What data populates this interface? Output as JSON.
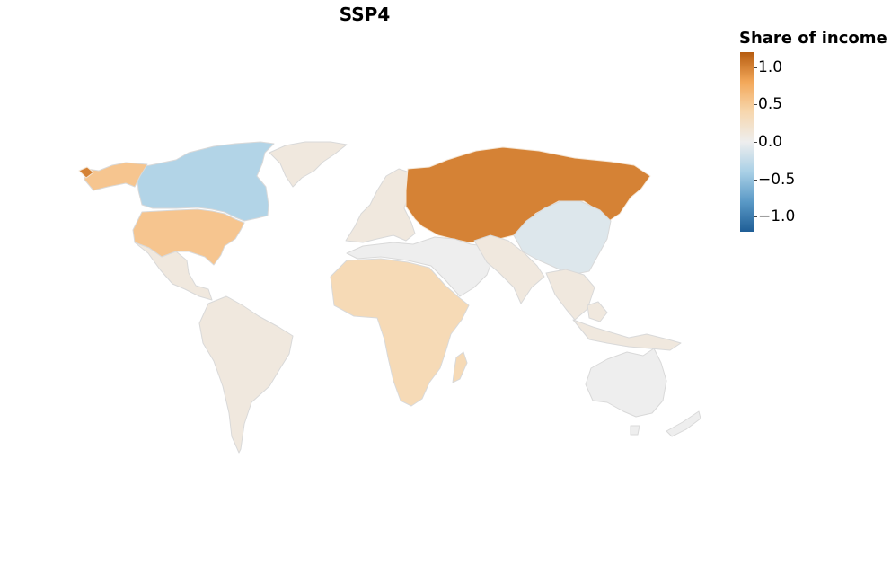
{
  "title": "SSP4",
  "legend": {
    "title": "Share of income",
    "ticks": [
      {
        "label": "1.0",
        "value": 1.0
      },
      {
        "label": "0.5",
        "value": 0.5
      },
      {
        "label": "0.0",
        "value": 0.0
      },
      {
        "label": "−0.5",
        "value": -0.5
      },
      {
        "label": "−1.0",
        "value": -1.0
      }
    ],
    "range": [
      -1.2,
      1.2
    ],
    "colors": [
      "#1f5e96",
      "#5a99c6",
      "#a9d0e6",
      "#eeeeee",
      "#f7d7ae",
      "#f3a85a",
      "#b65c10"
    ]
  },
  "colors": {
    "border": "#d9d9d9",
    "russia_region_border": "#f4e6d6",
    "background": "#ffffff"
  },
  "regions": [
    {
      "name": "Canada",
      "value": -0.35
    },
    {
      "name": "United States",
      "value": 0.55
    },
    {
      "name": "Alaska",
      "value": 0.55
    },
    {
      "name": "Greenland",
      "value": 0.1
    },
    {
      "name": "Latin America",
      "value": 0.1
    },
    {
      "name": "Europe",
      "value": 0.1
    },
    {
      "name": "Russia and Central Asia",
      "value": 1.0
    },
    {
      "name": "Middle East and North Africa",
      "value": 0.0
    },
    {
      "name": "Sub-Saharan Africa",
      "value": 0.35
    },
    {
      "name": "South Asia",
      "value": 0.1
    },
    {
      "name": "China",
      "value": -0.1
    },
    {
      "name": "Southeast Asia",
      "value": 0.1
    },
    {
      "name": "Oceania",
      "value": 0.0
    }
  ]
}
